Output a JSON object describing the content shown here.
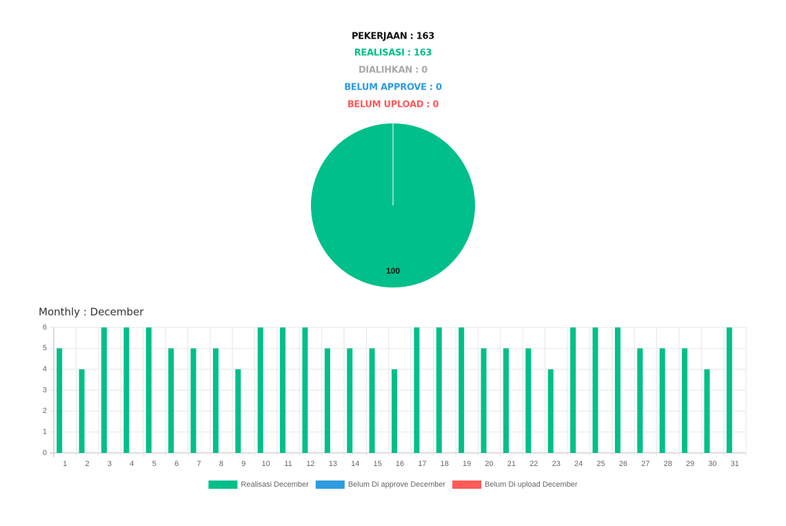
{
  "header": {
    "lines": [
      "PEKERJAAN : 163",
      "REALISASI : 163",
      "DIALIHKAN : 0",
      "BELUM APPROVE : 0",
      "BELUM UPLOAD : 0"
    ]
  },
  "chart_data": [
    {
      "type": "pie",
      "values": [
        100
      ],
      "colors": [
        "#00bf8a"
      ]
    },
    {
      "type": "bar",
      "title": "Monthly : December",
      "categories": [
        "1",
        "2",
        "3",
        "4",
        "5",
        "6",
        "7",
        "8",
        "9",
        "10",
        "11",
        "12",
        "13",
        "14",
        "15",
        "16",
        "17",
        "18",
        "19",
        "20",
        "21",
        "22",
        "23",
        "24",
        "25",
        "26",
        "27",
        "28",
        "29",
        "30",
        "31"
      ],
      "series": [
        {
          "name": "Realisasi December",
          "color": "#00bf8a",
          "values": [
            5,
            4,
            6,
            6,
            6,
            5,
            5,
            5,
            4,
            6,
            6,
            6,
            5,
            5,
            5,
            4,
            6,
            6,
            6,
            5,
            5,
            5,
            4,
            6,
            6,
            6,
            5,
            5,
            5,
            4,
            6
          ]
        },
        {
          "name": "Belum Di approve December",
          "color": "#2f9be0",
          "values": [
            0,
            0,
            0,
            0,
            0,
            0,
            0,
            0,
            0,
            0,
            0,
            0,
            0,
            0,
            0,
            0,
            0,
            0,
            0,
            0,
            0,
            0,
            0,
            0,
            0,
            0,
            0,
            0,
            0,
            0,
            0
          ]
        },
        {
          "name": "Belum Di upload December",
          "color": "#ff5a5a",
          "values": [
            0,
            0,
            0,
            0,
            0,
            0,
            0,
            0,
            0,
            0,
            0,
            0,
            0,
            0,
            0,
            0,
            0,
            0,
            0,
            0,
            0,
            0,
            0,
            0,
            0,
            0,
            0,
            0,
            0,
            0,
            0
          ]
        }
      ],
      "ylim": [
        0,
        6
      ],
      "yticks": [
        0,
        1,
        2,
        3,
        4,
        5,
        6
      ],
      "grid": true,
      "legend": "bottom"
    }
  ]
}
